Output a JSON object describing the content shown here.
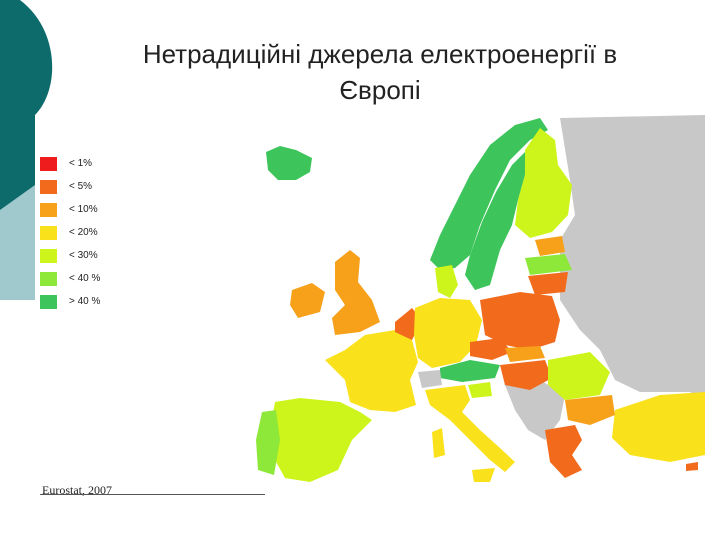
{
  "title_line1": "Нетрадиційні джерела електроенергії в",
  "title_line2": "Європі",
  "legend": [
    {
      "label": "< 1%",
      "color": "#ee1c1c"
    },
    {
      "label": "< 5%",
      "color": "#f26b1d"
    },
    {
      "label": "< 10%",
      "color": "#f7a11a"
    },
    {
      "label": "< 20%",
      "color": "#f9e11c"
    },
    {
      "label": "< 30%",
      "color": "#cdf51c"
    },
    {
      "label": "< 40 %",
      "color": "#8ee83a"
    },
    {
      "label": "> 40 %",
      "color": "#3dc45a"
    }
  ],
  "source": "Eurostat, 2007",
  "colors": {
    "teal_dark": "#0e6b6c",
    "teal_light": "#9fc9cc",
    "no_data": "#c8c8c8",
    "sea": "#ffffff"
  }
}
